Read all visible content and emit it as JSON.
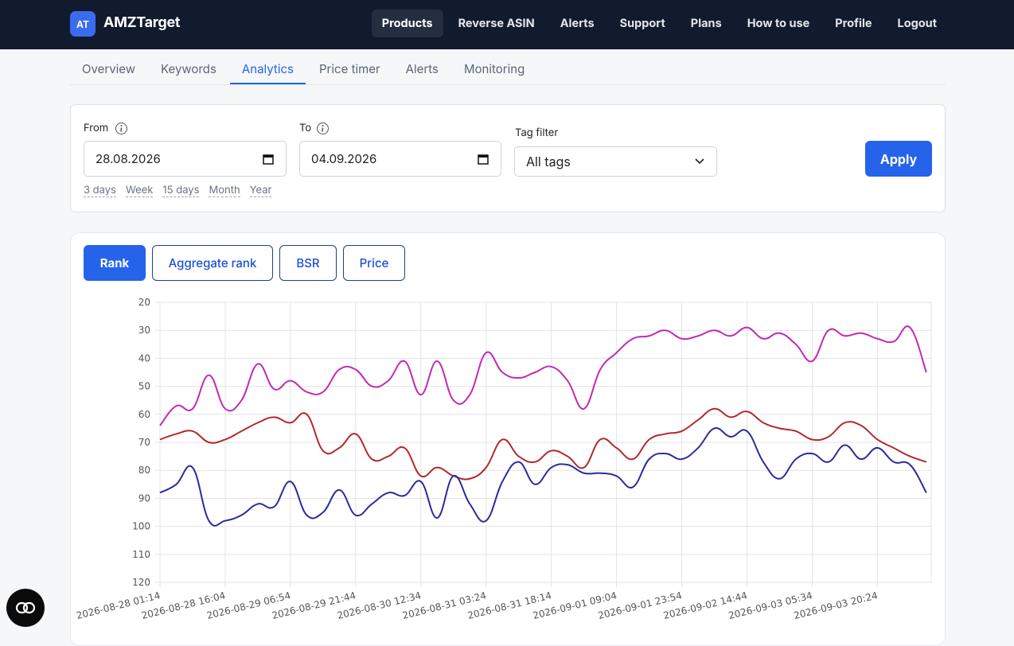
{
  "header": {
    "logo": "AT",
    "brand": "AMZTarget",
    "nav": [
      "Products",
      "Reverse ASIN",
      "Alerts",
      "Support",
      "Plans",
      "How to use",
      "Profile",
      "Logout"
    ]
  },
  "tabs": [
    "Overview",
    "Keywords",
    "Analytics",
    "Price timer",
    "Alerts",
    "Monitoring"
  ],
  "filters": {
    "from_label": "From",
    "from_value": "28.08.2026",
    "to_label": "To",
    "to_value": "04.09.2026",
    "presets": [
      "3 days",
      "Week",
      "15 days",
      "Month",
      "Year"
    ],
    "tag_label": "Tag filter",
    "tag_value": "All tags",
    "apply": "Apply"
  },
  "chart_tabs": [
    "Rank",
    "Aggregate rank",
    "BSR",
    "Price"
  ],
  "chart_data": {
    "type": "line",
    "categories": [
      "2026-08-28 01:14",
      null,
      null,
      null,
      "2026-08-28 16:04",
      null,
      null,
      null,
      "2026-08-29 06:54",
      null,
      null,
      null,
      "2026-08-29 21:44",
      null,
      null,
      null,
      "2026-08-30 12:34",
      null,
      null,
      null,
      "2026-08-31 03:24",
      null,
      null,
      null,
      "2026-08-31 18:14",
      null,
      null,
      null,
      "2026-09-01 09:04",
      null,
      null,
      null,
      "2026-09-01 23:54",
      null,
      null,
      null,
      "2026-09-02 14:44",
      null,
      null,
      null,
      "2026-09-03 05:34",
      null,
      null,
      null,
      "2026-09-03 20:24",
      null,
      null,
      null
    ],
    "series": [
      {
        "color": "#c02ab8",
        "values": [
          64,
          57,
          58,
          46,
          58,
          55,
          42,
          51,
          48,
          52,
          52,
          44,
          44,
          50,
          48,
          41,
          53,
          41,
          55,
          53,
          38,
          45,
          47,
          45,
          43,
          48,
          58,
          44,
          38,
          33,
          32,
          30,
          33,
          32,
          30,
          32,
          29,
          33,
          31,
          35,
          41,
          30,
          32,
          31,
          33,
          34,
          29,
          45
        ]
      },
      {
        "color": "#b22a2e",
        "values": [
          69,
          67,
          66,
          70,
          69,
          66,
          63,
          61,
          63,
          60,
          73,
          72,
          67,
          76,
          75,
          72,
          82,
          79,
          82,
          83,
          79,
          69,
          75,
          77,
          73,
          75,
          79,
          69,
          72,
          76,
          69,
          67,
          66,
          62,
          58,
          61,
          59,
          63,
          65,
          66,
          69,
          68,
          63,
          64,
          69,
          72,
          75,
          77
        ]
      },
      {
        "color": "#2b2b9c",
        "values": [
          88,
          85,
          79,
          98,
          98,
          96,
          92,
          93,
          84,
          96,
          95,
          87,
          96,
          92,
          88,
          89,
          84,
          97,
          82,
          92,
          98,
          84,
          77,
          85,
          79,
          78,
          81,
          81,
          82,
          86,
          76,
          74,
          76,
          72,
          65,
          68,
          66,
          77,
          83,
          76,
          74,
          77,
          71,
          76,
          72,
          77,
          78,
          88
        ]
      }
    ],
    "ylim": [
      20,
      120
    ],
    "y_inverted": true,
    "yticks": [
      20,
      30,
      40,
      50,
      60,
      70,
      80,
      90,
      100,
      110,
      120
    ],
    "grid": true
  }
}
